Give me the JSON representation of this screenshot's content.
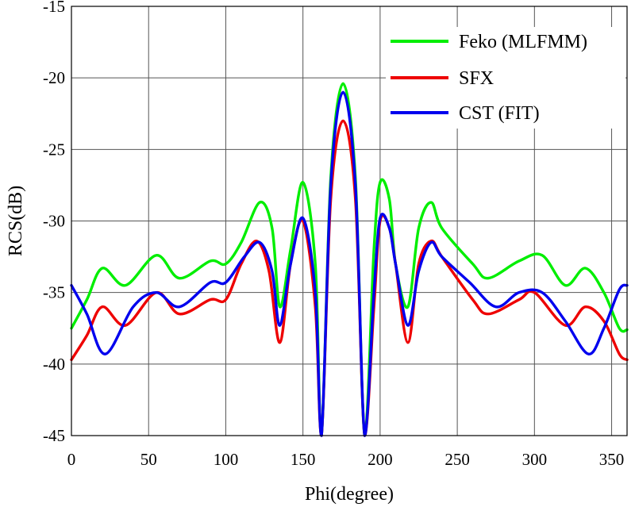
{
  "chart_data": {
    "type": "line",
    "title": "",
    "xlabel": "Phi(degree)",
    "ylabel": "RCS(dB)",
    "xlim": [
      0,
      360
    ],
    "ylim": [
      -45,
      -15
    ],
    "xticks": [
      0,
      50,
      100,
      150,
      200,
      250,
      300,
      350
    ],
    "yticks": [
      -15,
      -20,
      -25,
      -30,
      -35,
      -40,
      -45
    ],
    "grid": true,
    "legend_position": "top-right",
    "series": [
      {
        "name": "Feko (MLFMM)",
        "color": "#00ee00",
        "x": [
          0,
          10,
          20,
          35,
          55,
          70,
          90,
          100,
          110,
          122,
          130,
          135,
          142,
          150,
          158,
          162,
          168,
          176,
          184,
          190,
          196,
          200,
          206,
          210,
          218,
          225,
          233,
          240,
          260,
          270,
          290,
          305,
          320,
          333,
          345,
          355,
          360
        ],
        "values": [
          -37.5,
          -35.5,
          -33.3,
          -34.5,
          -32.4,
          -34.0,
          -32.8,
          -33.0,
          -31.5,
          -28.7,
          -30.5,
          -36.0,
          -32.0,
          -27.3,
          -33.0,
          -45.0,
          -27.0,
          -20.4,
          -27.0,
          -45.0,
          -32.0,
          -27.3,
          -28.5,
          -33.0,
          -36.0,
          -30.5,
          -28.7,
          -30.5,
          -33.0,
          -34.0,
          -32.8,
          -32.4,
          -34.5,
          -33.3,
          -35.0,
          -37.5,
          -37.6
        ]
      },
      {
        "name": "SFX",
        "color": "#ee0000",
        "x": [
          0,
          10,
          20,
          35,
          55,
          70,
          90,
          100,
          110,
          120,
          128,
          135,
          142,
          150,
          158,
          162,
          168,
          176,
          184,
          190,
          196,
          200,
          206,
          210,
          218,
          225,
          233,
          240,
          260,
          270,
          290,
          300,
          320,
          333,
          345,
          355,
          360
        ],
        "values": [
          -39.7,
          -38.0,
          -36.0,
          -37.3,
          -35.0,
          -36.5,
          -35.5,
          -35.5,
          -33.0,
          -31.4,
          -33.5,
          -38.5,
          -33.0,
          -30.0,
          -36.0,
          -45.0,
          -28.5,
          -23.0,
          -28.5,
          -45.0,
          -36.0,
          -30.0,
          -30.5,
          -33.0,
          -38.5,
          -33.0,
          -31.4,
          -32.5,
          -35.5,
          -36.5,
          -35.5,
          -35.0,
          -37.3,
          -36.0,
          -37.0,
          -39.3,
          -39.7
        ]
      },
      {
        "name": "CST (FIT)",
        "color": "#0000ee",
        "x": [
          0,
          10,
          22,
          40,
          55,
          70,
          90,
          100,
          112,
          122,
          130,
          135,
          142,
          150,
          158,
          162,
          168,
          176,
          184,
          190,
          196,
          200,
          206,
          210,
          218,
          225,
          233,
          240,
          258,
          275,
          290,
          305,
          320,
          335,
          345,
          355,
          360
        ],
        "values": [
          -34.5,
          -36.5,
          -39.3,
          -36.0,
          -35.0,
          -36.0,
          -34.3,
          -34.3,
          -32.5,
          -31.5,
          -33.5,
          -37.3,
          -33.0,
          -29.8,
          -35.0,
          -45.0,
          -27.5,
          -21.0,
          -27.5,
          -45.0,
          -35.0,
          -29.8,
          -30.5,
          -33.0,
          -37.3,
          -33.5,
          -31.5,
          -32.5,
          -34.3,
          -36.0,
          -35.0,
          -35.0,
          -37.0,
          -39.3,
          -37.5,
          -34.8,
          -34.5
        ]
      }
    ]
  }
}
